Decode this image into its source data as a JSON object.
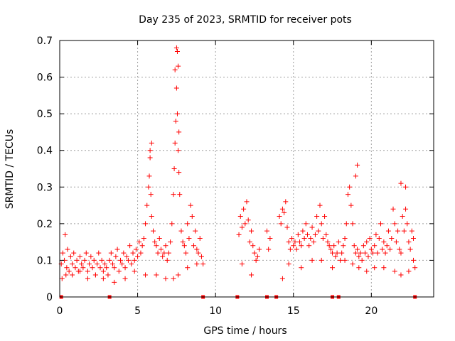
{
  "chart_data": {
    "type": "scatter",
    "title": "Day 235 of 2023, SRMTID for receiver pots",
    "xlabel": "GPS time / hours",
    "ylabel": "SRMTID / TECUs",
    "xlim": [
      0,
      24
    ],
    "ylim": [
      0,
      0.7
    ],
    "x_ticks": [
      0,
      5,
      10,
      15,
      20
    ],
    "x_tick_labels": [
      "0",
      "5",
      "10",
      "15",
      "20"
    ],
    "y_ticks": [
      0,
      0.1,
      0.2,
      0.3,
      0.4,
      0.5,
      0.6,
      0.7
    ],
    "y_tick_labels": [
      "0",
      "0.1",
      "0.2",
      "0.3",
      "0.4",
      "0.5",
      "0.6",
      "0.7"
    ],
    "grid": true,
    "marker": "+",
    "series": [
      {
        "name": "SRMTID",
        "color": "#ff0000",
        "x": [
          0.1,
          0.2,
          0.3,
          0.35,
          0.45,
          0.5,
          0.6,
          0.7,
          0.8,
          0.9,
          1.0,
          1.1,
          1.2,
          1.3,
          1.4,
          1.5,
          1.6,
          1.7,
          1.8,
          1.9,
          2.0,
          2.1,
          2.2,
          2.3,
          2.4,
          2.5,
          2.6,
          2.7,
          2.8,
          2.9,
          3.0,
          3.1,
          3.2,
          3.3,
          3.4,
          3.5,
          3.6,
          3.7,
          3.8,
          3.9,
          4.0,
          4.1,
          4.2,
          4.3,
          4.4,
          4.5,
          4.6,
          4.7,
          4.8,
          4.9,
          5.0,
          5.1,
          5.2,
          5.3,
          5.4,
          5.5,
          5.6,
          5.7,
          5.75,
          5.8,
          5.85,
          5.9,
          6.0,
          6.1,
          6.2,
          6.3,
          6.4,
          6.5,
          6.6,
          6.7,
          6.8,
          6.9,
          7.0,
          7.1,
          7.2,
          7.3,
          7.35,
          7.4,
          7.45,
          7.5,
          7.55,
          7.6,
          7.65,
          7.7,
          7.8,
          7.9,
          8.0,
          8.1,
          8.2,
          8.3,
          8.4,
          8.5,
          8.6,
          8.7,
          8.8,
          8.9,
          9.0,
          9.1,
          9.2,
          11.5,
          11.6,
          11.7,
          11.8,
          11.9,
          12.0,
          12.1,
          12.2,
          12.3,
          12.4,
          12.5,
          12.6,
          12.7,
          12.8,
          13.3,
          13.4,
          13.5,
          14.1,
          14.2,
          14.3,
          14.4,
          14.5,
          14.6,
          14.7,
          14.8,
          14.9,
          15.0,
          15.1,
          15.2,
          15.3,
          15.4,
          15.5,
          15.6,
          15.7,
          15.8,
          15.9,
          16.0,
          16.1,
          16.2,
          16.3,
          16.4,
          16.5,
          16.6,
          16.7,
          16.8,
          16.9,
          17.0,
          17.1,
          17.2,
          17.3,
          17.4,
          17.5,
          17.6,
          17.7,
          17.8,
          17.9,
          18.0,
          18.1,
          18.2,
          18.3,
          18.4,
          18.5,
          18.6,
          18.7,
          18.8,
          18.9,
          19.0,
          19.1,
          19.2,
          19.3,
          19.4,
          19.5,
          19.6,
          19.7,
          19.8,
          19.9,
          20.0,
          20.1,
          20.2,
          20.3,
          20.4,
          20.5,
          20.6,
          20.7,
          20.8,
          20.9,
          21.0,
          21.1,
          21.2,
          21.3,
          21.4,
          21.5,
          21.6,
          21.7,
          21.8,
          21.9,
          22.0,
          22.1,
          22.2,
          22.3,
          22.4,
          22.5,
          22.6,
          22.7,
          22.8,
          0.15,
          0.4,
          0.8,
          1.3,
          1.8,
          2.3,
          2.8,
          3.5,
          4.2,
          4.8,
          5.5,
          6.2,
          6.8,
          7.3,
          7.6,
          8.2,
          8.8,
          11.7,
          12.3,
          14.3,
          14.7,
          15.5,
          16.2,
          16.8,
          17.5,
          18.3,
          18.8,
          19.2,
          19.7,
          20.2,
          20.8,
          21.5,
          21.9,
          22.4,
          22.7,
          5.8,
          5.9,
          7.4,
          7.5,
          7.55,
          7.6,
          7.65,
          19.1,
          19.0,
          21.9,
          22.2
        ],
        "y": [
          0.09,
          0.12,
          0.1,
          0.17,
          0.08,
          0.13,
          0.07,
          0.11,
          0.09,
          0.12,
          0.08,
          0.1,
          0.07,
          0.11,
          0.09,
          0.08,
          0.1,
          0.12,
          0.07,
          0.09,
          0.11,
          0.08,
          0.1,
          0.06,
          0.09,
          0.12,
          0.08,
          0.1,
          0.07,
          0.09,
          0.08,
          0.06,
          0.1,
          0.12,
          0.09,
          0.08,
          0.11,
          0.13,
          0.07,
          0.1,
          0.09,
          0.12,
          0.08,
          0.11,
          0.1,
          0.14,
          0.09,
          0.12,
          0.1,
          0.13,
          0.11,
          0.15,
          0.12,
          0.14,
          0.16,
          0.2,
          0.25,
          0.3,
          0.33,
          0.38,
          0.28,
          0.22,
          0.18,
          0.15,
          0.14,
          0.12,
          0.16,
          0.13,
          0.11,
          0.12,
          0.14,
          0.1,
          0.12,
          0.15,
          0.2,
          0.28,
          0.35,
          0.42,
          0.48,
          0.57,
          0.5,
          0.4,
          0.34,
          0.28,
          0.18,
          0.15,
          0.14,
          0.12,
          0.2,
          0.16,
          0.25,
          0.22,
          0.14,
          0.18,
          0.13,
          0.12,
          0.16,
          0.11,
          0.09,
          0.17,
          0.22,
          0.19,
          0.24,
          0.2,
          0.26,
          0.21,
          0.15,
          0.18,
          0.14,
          0.12,
          0.1,
          0.11,
          0.13,
          0.18,
          0.13,
          0.16,
          0.22,
          0.2,
          0.24,
          0.23,
          0.26,
          0.19,
          0.15,
          0.13,
          0.16,
          0.14,
          0.15,
          0.13,
          0.17,
          0.15,
          0.14,
          0.18,
          0.16,
          0.2,
          0.17,
          0.14,
          0.16,
          0.19,
          0.15,
          0.17,
          0.22,
          0.18,
          0.25,
          0.2,
          0.16,
          0.22,
          0.17,
          0.15,
          0.14,
          0.13,
          0.12,
          0.14,
          0.11,
          0.12,
          0.15,
          0.1,
          0.12,
          0.14,
          0.16,
          0.2,
          0.28,
          0.3,
          0.25,
          0.2,
          0.14,
          0.12,
          0.13,
          0.11,
          0.12,
          0.1,
          0.14,
          0.12,
          0.15,
          0.11,
          0.16,
          0.13,
          0.12,
          0.14,
          0.17,
          0.12,
          0.16,
          0.2,
          0.13,
          0.15,
          0.12,
          0.14,
          0.18,
          0.13,
          0.16,
          0.24,
          0.2,
          0.15,
          0.18,
          0.13,
          0.12,
          0.22,
          0.18,
          0.24,
          0.2,
          0.15,
          0.13,
          0.18,
          0.16,
          0.08,
          0.05,
          0.06,
          0.06,
          0.07,
          0.05,
          0.06,
          0.05,
          0.04,
          0.05,
          0.07,
          0.06,
          0.06,
          0.05,
          0.05,
          0.06,
          0.08,
          0.09,
          0.09,
          0.06,
          0.05,
          0.09,
          0.08,
          0.1,
          0.1,
          0.08,
          0.1,
          0.09,
          0.08,
          0.07,
          0.08,
          0.08,
          0.07,
          0.06,
          0.07,
          0.1,
          0.4,
          0.42,
          0.62,
          0.68,
          0.67,
          0.63,
          0.45,
          0.36,
          0.33,
          0.31,
          0.3
        ],
        "markers_at_zero": [
          0.1,
          3.2,
          9.2,
          11.4,
          13.3,
          13.9,
          17.5,
          17.9,
          22.8
        ]
      }
    ]
  }
}
